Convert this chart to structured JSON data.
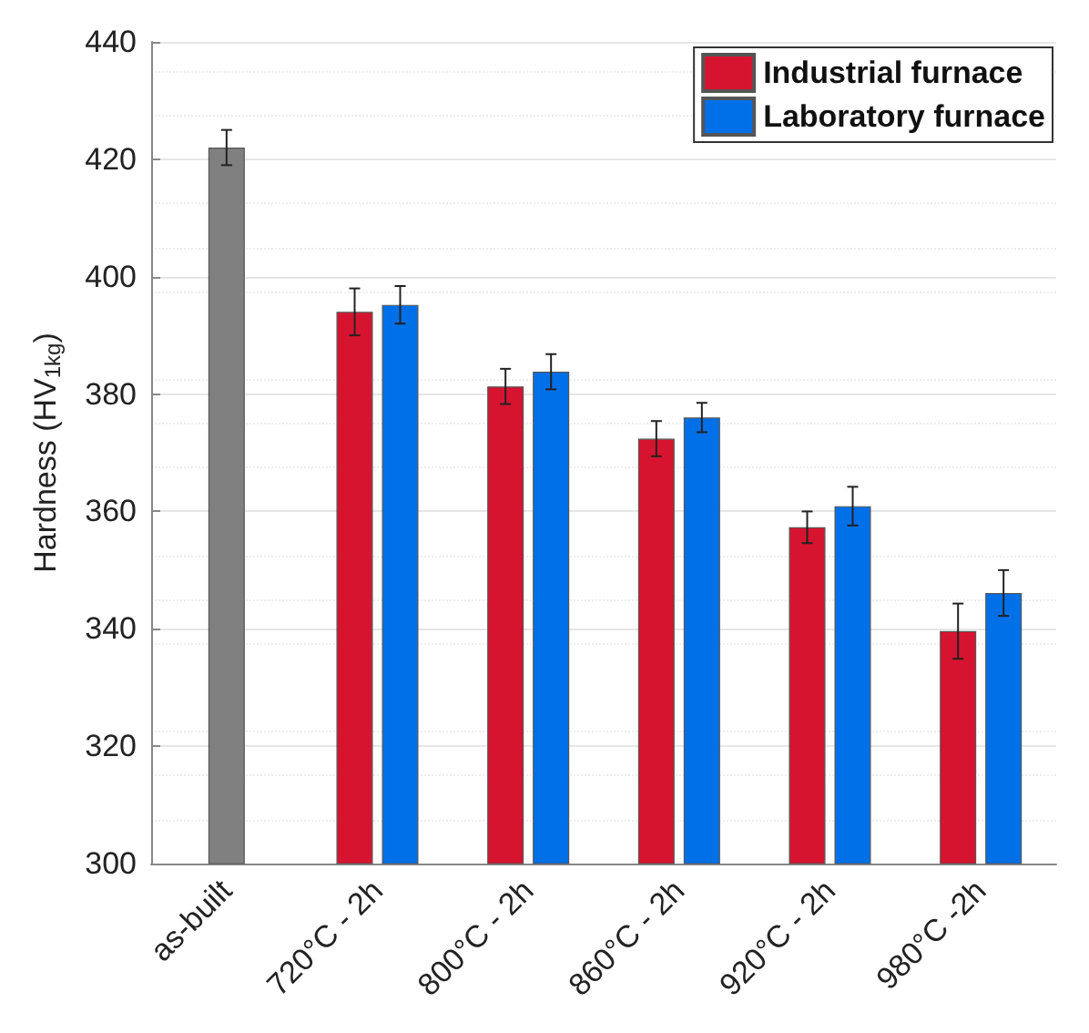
{
  "chart_data": {
    "type": "bar",
    "ylabel": "Hardness (HV$_{1kg}$)",
    "categories": [
      "as-built",
      "720°C - 2h",
      "800°C - 2h",
      "860°C - 2h",
      "920°C - 2h",
      "980°C -2h"
    ],
    "series": [
      {
        "color": "#808080",
        "values": [
          422,
          null,
          null,
          null,
          null,
          null
        ],
        "errors": [
          3,
          null,
          null,
          null,
          null,
          null
        ]
      },
      {
        "name": "Industrial furnace",
        "color": "#d7142f",
        "values": [
          null,
          394,
          381.3,
          372.4,
          357.3,
          339.6
        ],
        "errors": [
          null,
          4,
          3,
          3,
          2.7,
          4.7
        ]
      },
      {
        "name": "Laboratory furnace",
        "color": "#0070e8",
        "values": [
          null,
          395.2,
          383.8,
          376,
          360.9,
          346.1
        ],
        "errors": [
          null,
          3.2,
          3,
          2.5,
          3.3,
          3.9
        ]
      }
    ],
    "ylim": [
      300,
      440
    ],
    "yticks": [
      300,
      320,
      340,
      360,
      380,
      400,
      420,
      440
    ],
    "grid": true,
    "legend": "top right"
  }
}
